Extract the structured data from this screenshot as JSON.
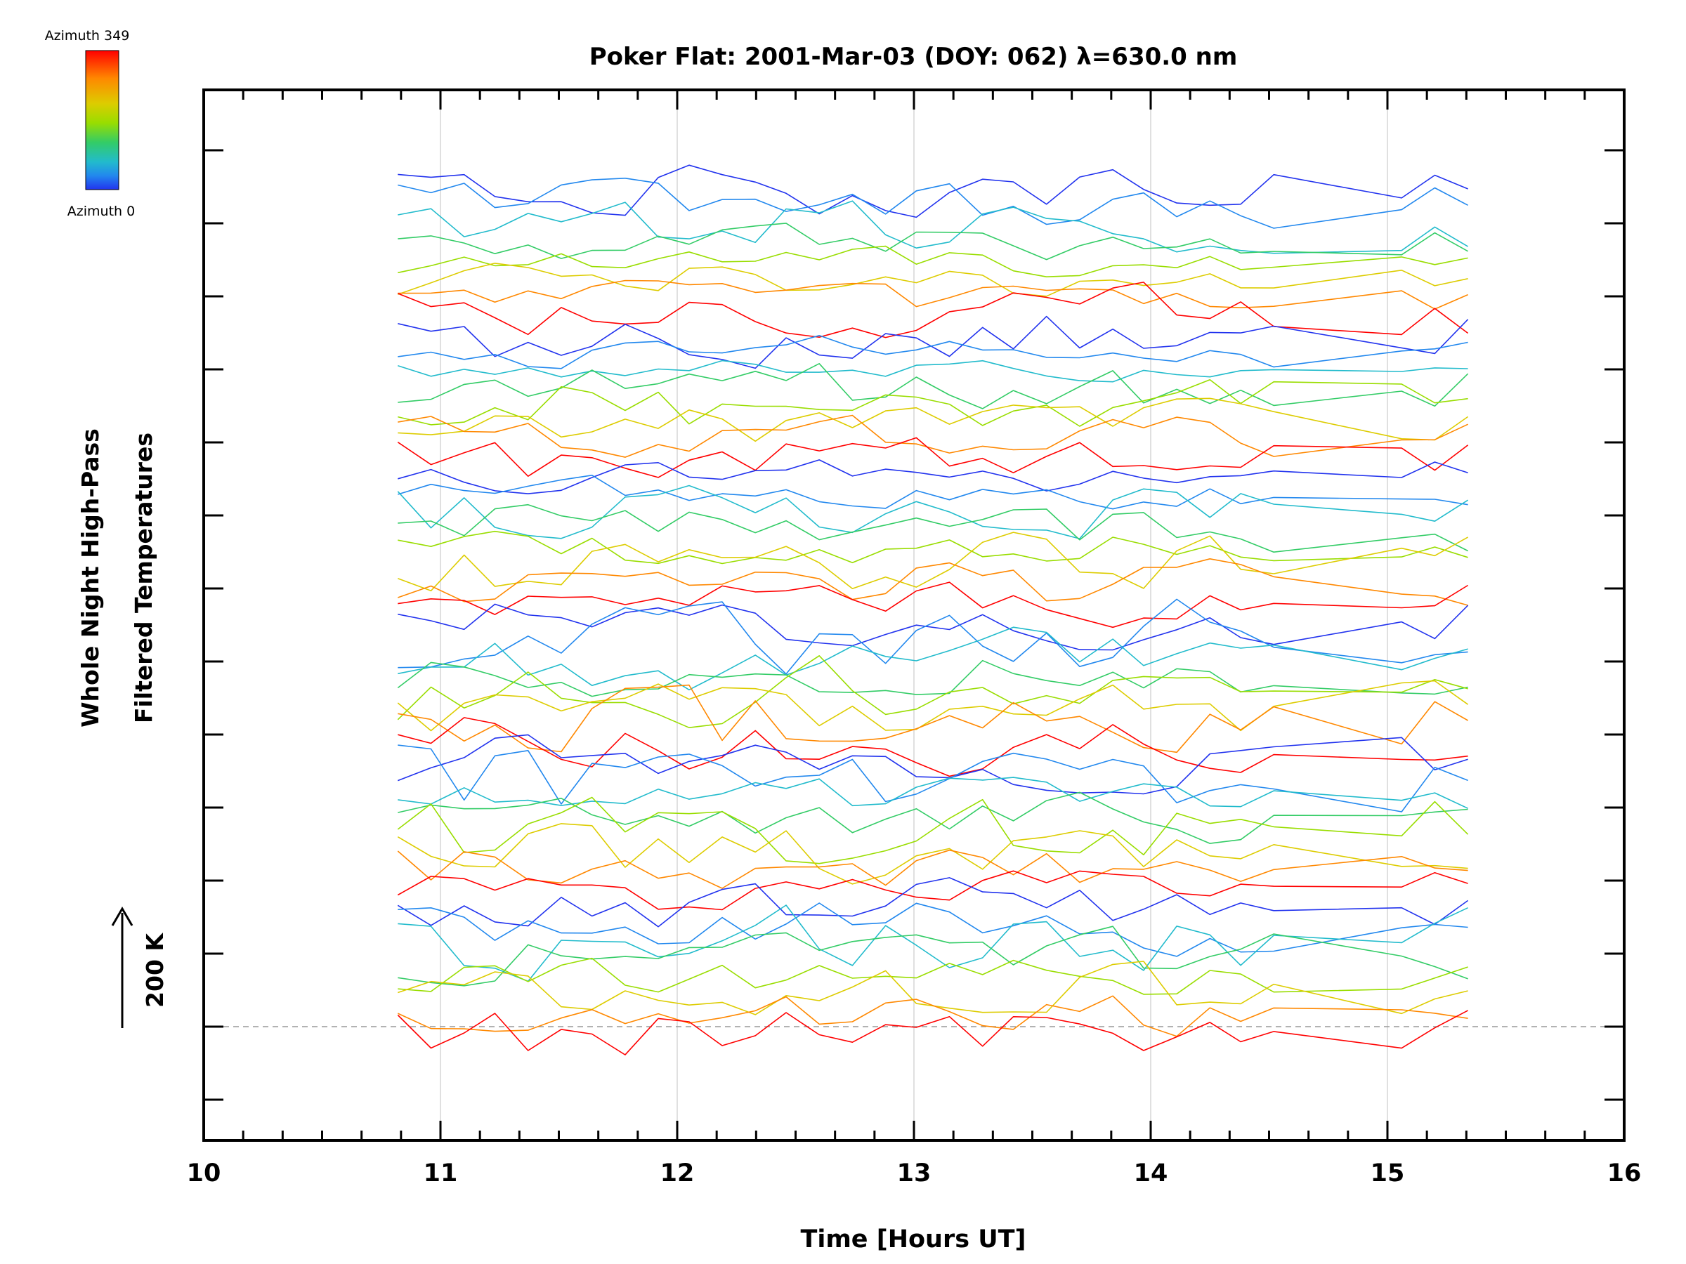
{
  "chart_data": {
    "type": "line",
    "title": "Poker Flat: 2001-Mar-03 (DOY: 062) λ=630.0 nm",
    "xlabel": "Time [Hours UT]",
    "ylabel_line1": "Whole Night High-Pass",
    "ylabel_line2": "Filtered Temperatures",
    "scale_bar_label": "200 K",
    "xlim": [
      10,
      16
    ],
    "xticks": [
      10,
      11,
      12,
      13,
      14,
      15,
      16
    ],
    "xtick_labels": [
      "10",
      "11",
      "12",
      "13",
      "14",
      "15",
      "16"
    ],
    "colorbar": {
      "top_label": "Azimuth 349",
      "bottom_label": "Azimuth 0",
      "colors": [
        "#ff0000",
        "#ff8800",
        "#ddcc00",
        "#99dd00",
        "#33cc66",
        "#22bbcc",
        "#2288ee",
        "#2233ee"
      ]
    },
    "vertical_grid": true,
    "dashed_baseline": true,
    "times": [
      10.82,
      10.96,
      11.1,
      11.23,
      11.37,
      11.51,
      11.64,
      11.78,
      11.92,
      12.05,
      12.19,
      12.33,
      12.46,
      12.6,
      12.74,
      12.88,
      13.01,
      13.15,
      13.29,
      13.42,
      13.56,
      13.7,
      13.84,
      13.97,
      14.11,
      14.25,
      14.38,
      14.52,
      15.06,
      15.2,
      15.34
    ],
    "series_count": 48,
    "series_colors": [
      "#2233ee",
      "#2288ee",
      "#22bbcc",
      "#33cc66",
      "#99dd00",
      "#ddcc00",
      "#ff8800",
      "#ff0000",
      "#2233ee",
      "#2288ee",
      "#22bbcc",
      "#33cc66",
      "#99dd00",
      "#ddcc00",
      "#ff8800",
      "#ff0000",
      "#2233ee",
      "#2288ee",
      "#22bbcc",
      "#33cc66",
      "#99dd00",
      "#ddcc00",
      "#ff8800",
      "#ff0000",
      "#2233ee",
      "#2288ee",
      "#22bbcc",
      "#33cc66",
      "#99dd00",
      "#ddcc00",
      "#ff8800",
      "#ff0000",
      "#2233ee",
      "#2288ee",
      "#22bbcc",
      "#33cc66",
      "#99dd00",
      "#ddcc00",
      "#ff8800",
      "#ff0000",
      "#2233ee",
      "#2288ee",
      "#22bbcc",
      "#33cc66",
      "#99dd00",
      "#ddcc00",
      "#ff8800",
      "#ff0000"
    ]
  }
}
